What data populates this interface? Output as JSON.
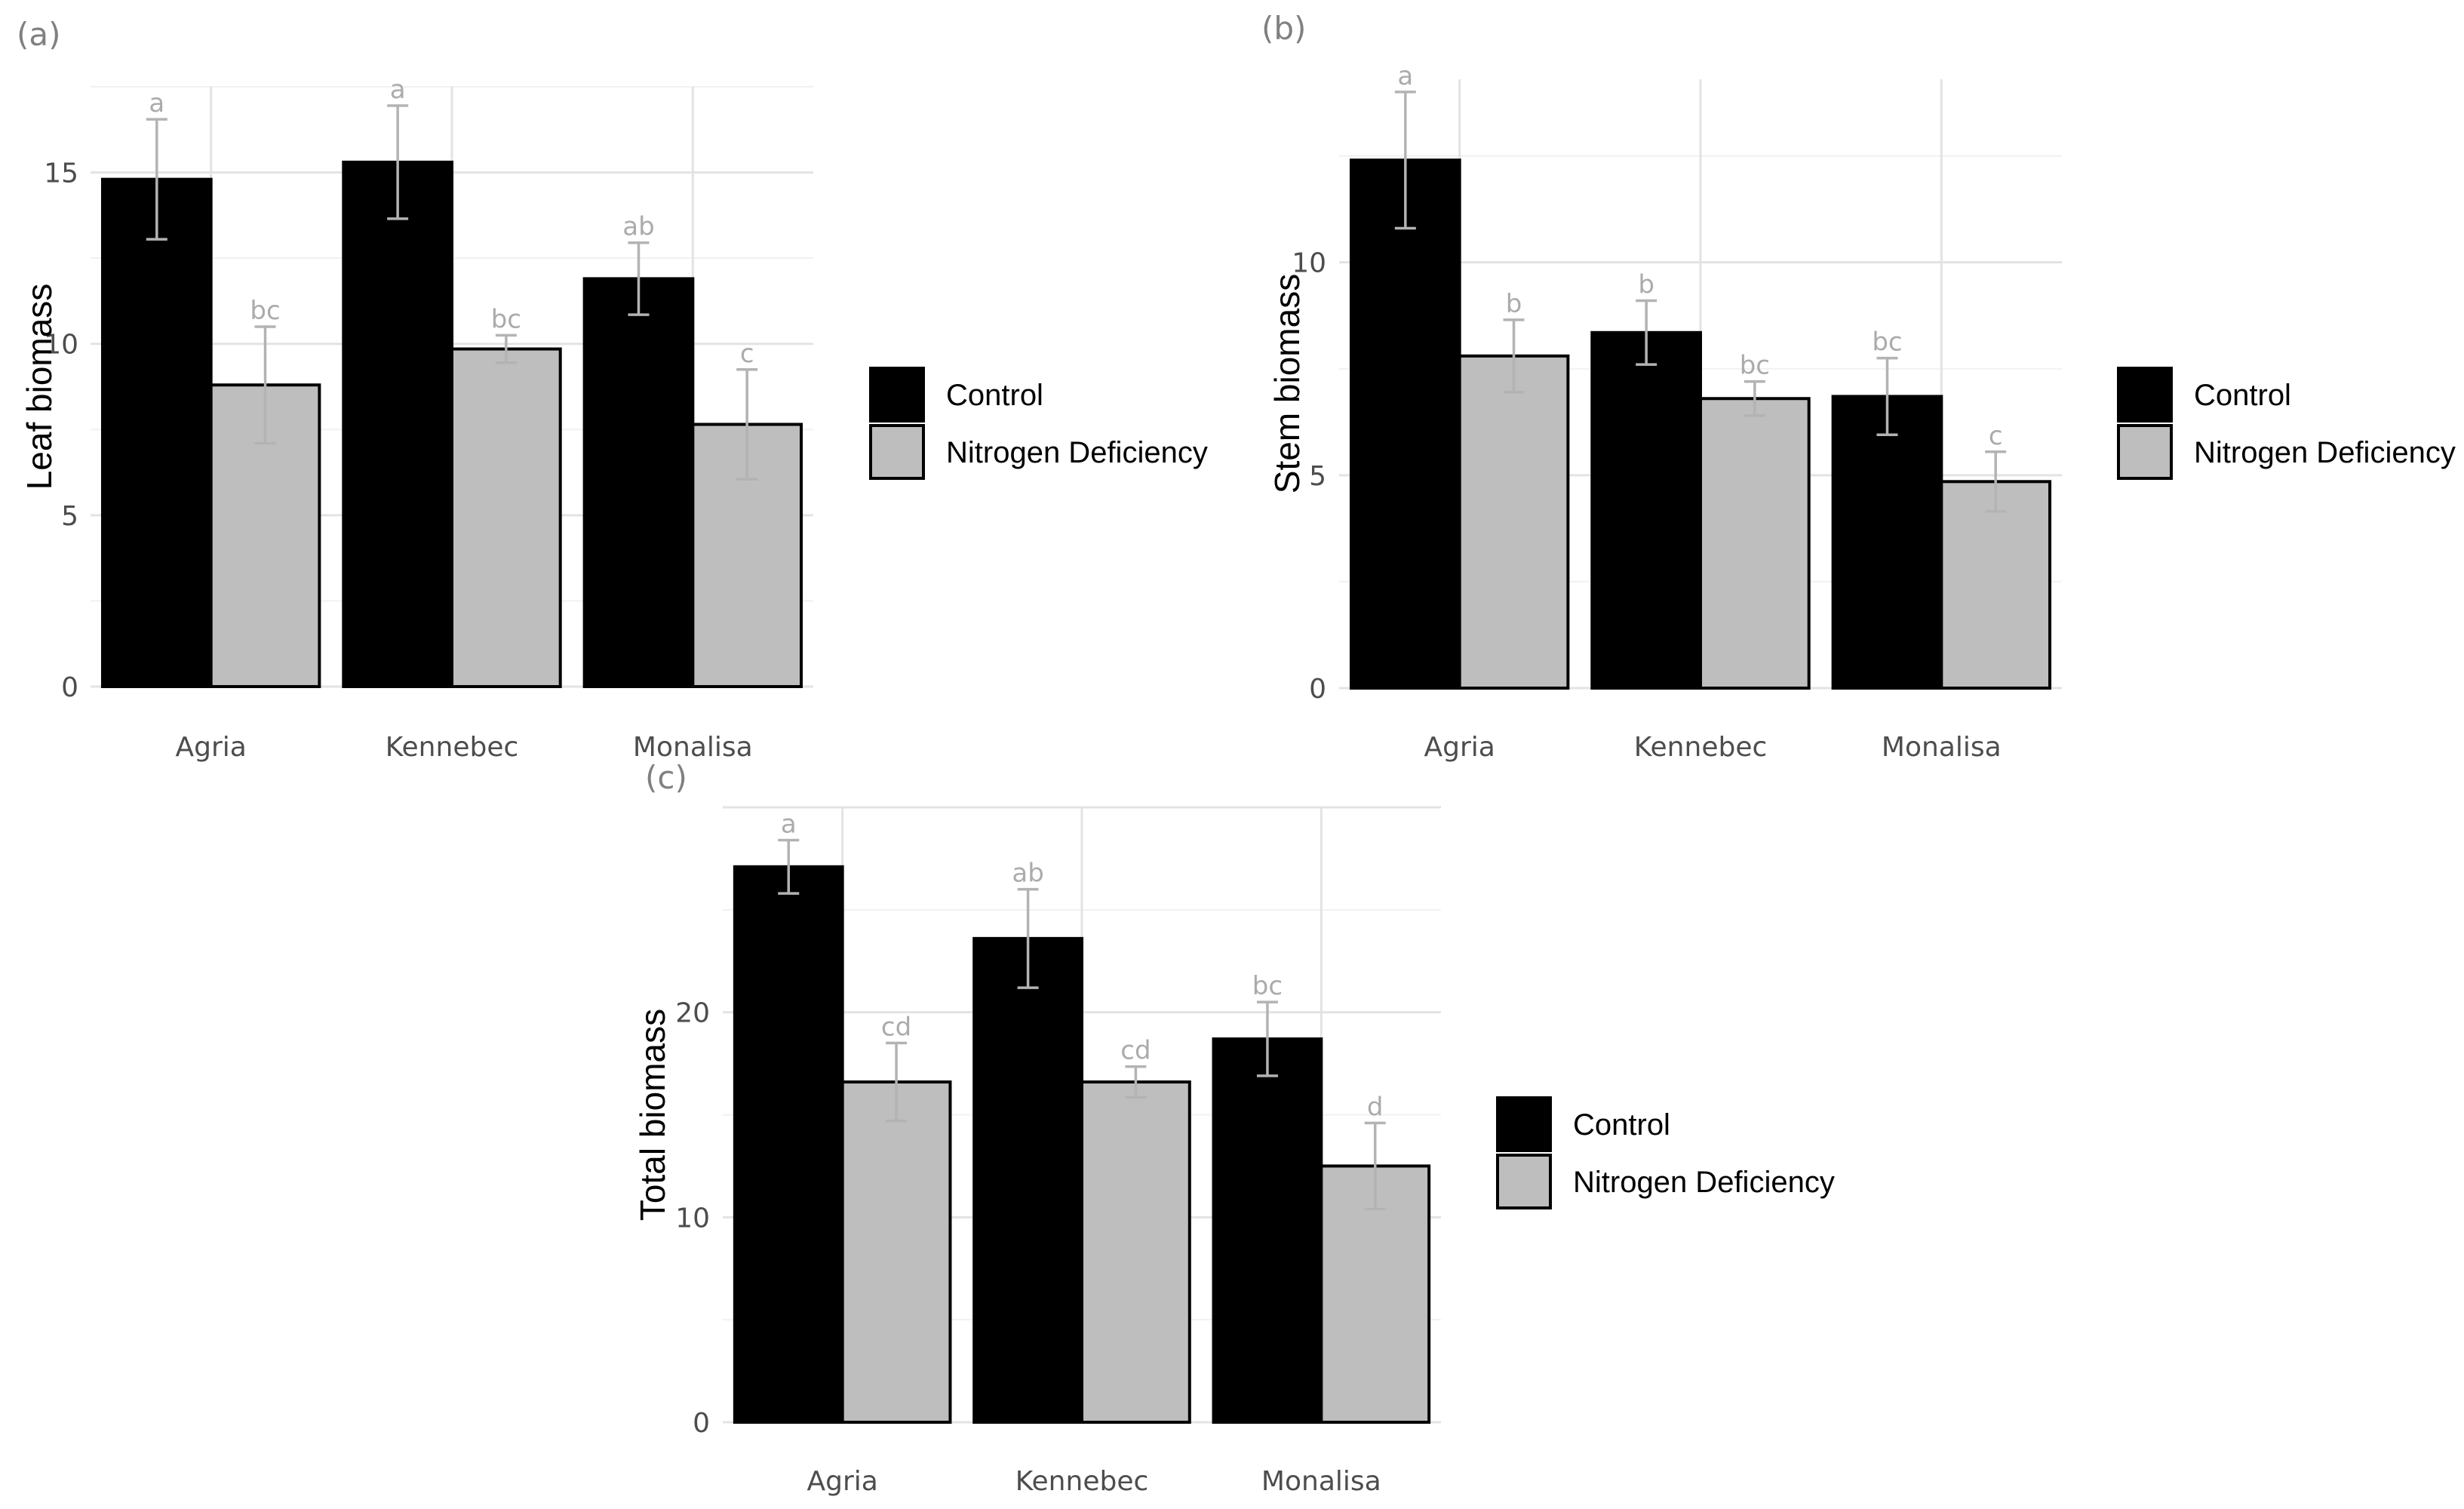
{
  "chart_data": [
    {
      "type": "bar",
      "panel_label": "(a)",
      "categories": [
        "Agria",
        "Kennebec",
        "Monalisa"
      ],
      "ylabel": "Leaf biomass",
      "xlabel": "",
      "ylim": [
        0,
        17.5
      ],
      "yticks": [
        0,
        5,
        10,
        15
      ],
      "grid": true,
      "legend_position": "right",
      "series": [
        {
          "name": "Control",
          "color": "#000000",
          "values": [
            14.8,
            15.3,
            11.9
          ],
          "errors": [
            1.75,
            1.65,
            1.05
          ],
          "letters": [
            "a",
            "a",
            "ab"
          ]
        },
        {
          "name": "Nitrogen Deficiency",
          "color": "#bebebe",
          "values": [
            8.8,
            9.85,
            7.65
          ],
          "errors": [
            1.7,
            0.4,
            1.6
          ],
          "letters": [
            "bc",
            "bc",
            "c"
          ]
        }
      ]
    },
    {
      "type": "bar",
      "panel_label": "(b)",
      "categories": [
        "Agria",
        "Kennebec",
        "Monalisa"
      ],
      "ylabel": "Stem biomass",
      "xlabel": "",
      "ylim": [
        0,
        14.3
      ],
      "yticks": [
        0,
        5,
        10
      ],
      "grid": true,
      "legend_position": "right",
      "series": [
        {
          "name": "Control",
          "color": "#000000",
          "values": [
            12.4,
            8.35,
            6.85
          ],
          "errors": [
            1.6,
            0.75,
            0.9
          ],
          "letters": [
            "a",
            "b",
            "bc"
          ]
        },
        {
          "name": "Nitrogen Deficiency",
          "color": "#bebebe",
          "values": [
            7.8,
            6.8,
            4.85
          ],
          "errors": [
            0.85,
            0.4,
            0.7
          ],
          "letters": [
            "b",
            "bc",
            "c"
          ]
        }
      ]
    },
    {
      "type": "bar",
      "panel_label": "(c)",
      "categories": [
        "Agria",
        "Kennebec",
        "Monalisa"
      ],
      "ylabel": "Total biomass",
      "xlabel": "",
      "ylim": [
        0,
        30
      ],
      "yticks": [
        0,
        10,
        20
      ],
      "grid": true,
      "legend_position": "right",
      "series": [
        {
          "name": "Control",
          "color": "#000000",
          "values": [
            27.1,
            23.6,
            18.7
          ],
          "errors": [
            1.3,
            2.4,
            1.8
          ],
          "letters": [
            "a",
            "ab",
            "bc"
          ]
        },
        {
          "name": "Nitrogen Deficiency",
          "color": "#bebebe",
          "values": [
            16.6,
            16.6,
            12.5
          ],
          "errors": [
            1.9,
            0.75,
            2.1
          ],
          "letters": [
            "cd",
            "cd",
            "d"
          ]
        }
      ]
    }
  ]
}
